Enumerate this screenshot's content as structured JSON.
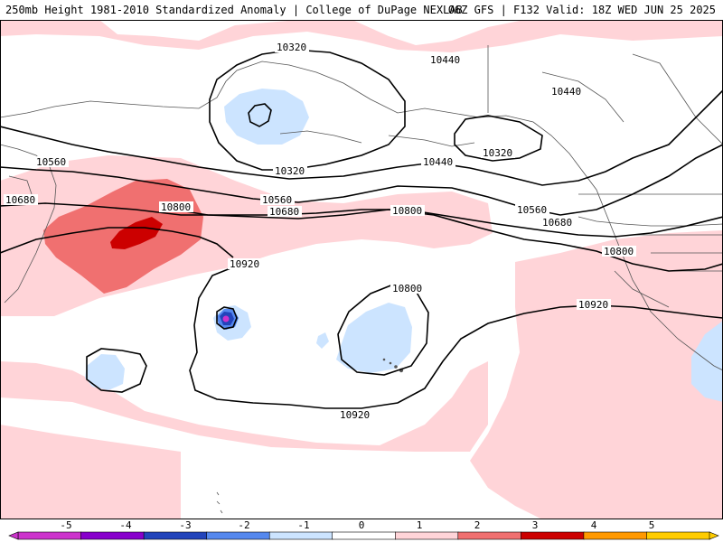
{
  "header": {
    "left": "250mb Height 1981-2010 Standardized Anomaly | College of DuPage NEXLAB",
    "right": "06Z GFS | F132 Valid: 18Z WED JUN 25 2025"
  },
  "map": {
    "contour_labels": [
      "10320",
      "10320",
      "10320",
      "10440",
      "10440",
      "10440",
      "10560",
      "10560",
      "10560",
      "10680",
      "10680",
      "10680",
      "10800",
      "10800",
      "10800",
      "10800",
      "10920",
      "10920",
      "10920"
    ]
  },
  "colorbar": {
    "ticks": [
      "-5",
      "-4",
      "-3",
      "-2",
      "-1",
      "0",
      "1",
      "2",
      "3",
      "4",
      "5"
    ],
    "colors": [
      "#cc33cc",
      "#8800cc",
      "#2244bb",
      "#5588ee",
      "#cce4ff",
      "#ffffff",
      "#ffd4d8",
      "#f07070",
      "#cc0000",
      "#ff9900",
      "#ffcc00"
    ]
  }
}
